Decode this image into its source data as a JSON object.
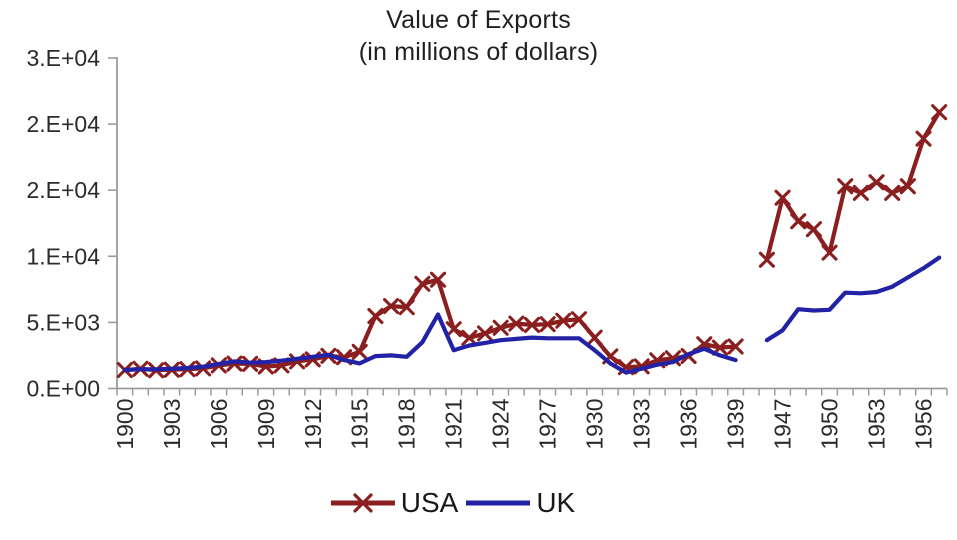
{
  "title": {
    "line1": "Value of Exports",
    "line2": "(in millions of dollars)"
  },
  "colors": {
    "usa_series": "#8B1E1E",
    "uk_series": "#2222A6",
    "axis": "#9B9B9B",
    "tick_text": "#2B2B2B",
    "title_text": "#1F1F1F",
    "background": "#FFFFFF"
  },
  "chart_data": {
    "type": "line",
    "title": "Value of Exports",
    "subtitle": "(in millions of dollars)",
    "grid": false,
    "legend_position": "bottom",
    "x_axis_gap": "axis jumps from 1939 to 1945; no data plotted for 1940-1945 (war years)",
    "x_tick_label_interval": 3,
    "x_tick_labels_shown": [
      "1900",
      "1903",
      "1906",
      "1909",
      "1912",
      "1915",
      "1918",
      "1921",
      "1924",
      "1927",
      "1930",
      "1933",
      "1936",
      "1939",
      "1947",
      "1950",
      "1953",
      "1956"
    ],
    "x": [
      1900,
      1901,
      1902,
      1903,
      1904,
      1905,
      1906,
      1907,
      1908,
      1909,
      1910,
      1911,
      1912,
      1913,
      1914,
      1915,
      1916,
      1917,
      1918,
      1919,
      1920,
      1921,
      1922,
      1923,
      1924,
      1925,
      1926,
      1927,
      1928,
      1929,
      1930,
      1931,
      1932,
      1933,
      1934,
      1935,
      1936,
      1937,
      1938,
      1939,
      1945,
      1946,
      1947,
      1948,
      1949,
      1950,
      1951,
      1952,
      1953,
      1954,
      1955,
      1956,
      1957
    ],
    "y_axis": {
      "min": 0,
      "max": 25000,
      "step": 5000,
      "tick_labels_bottom_to_top": [
        "0.E+00",
        "5.E+03",
        "1.E+04",
        "2.E+04",
        "2.E+04",
        "3.E+04"
      ]
    },
    "series": [
      {
        "name": "USA",
        "color": "#8B1E1E",
        "marker": "x",
        "values": [
          1394,
          1488,
          1382,
          1420,
          1461,
          1519,
          1744,
          1881,
          1861,
          1663,
          1745,
          2049,
          2204,
          2466,
          2365,
          2769,
          5483,
          6234,
          6149,
          7920,
          8228,
          4485,
          3832,
          4167,
          4591,
          4910,
          4808,
          4865,
          5128,
          5241,
          3843,
          2424,
          1611,
          1675,
          2133,
          2283,
          2456,
          3349,
          3094,
          3177,
          null,
          9738,
          14430,
          12653,
          12051,
          10275,
          15300,
          14800,
          15600,
          14800,
          15300,
          18900,
          20900
        ]
      },
      {
        "name": "UK",
        "color": "#2222A6",
        "marker": "none",
        "values": [
          1400,
          1450,
          1450,
          1500,
          1550,
          1650,
          1850,
          2050,
          1950,
          2000,
          2100,
          2250,
          2400,
          2550,
          2150,
          1900,
          2450,
          2500,
          2400,
          3500,
          5600,
          2900,
          3250,
          3450,
          3650,
          3750,
          3850,
          3800,
          3800,
          3800,
          2900,
          1900,
          1200,
          1500,
          1800,
          2000,
          2600,
          3000,
          2500,
          2150,
          null,
          3650,
          4400,
          6000,
          5900,
          5950,
          7250,
          7200,
          7300,
          7700,
          8400,
          9100,
          9900
        ]
      }
    ]
  }
}
